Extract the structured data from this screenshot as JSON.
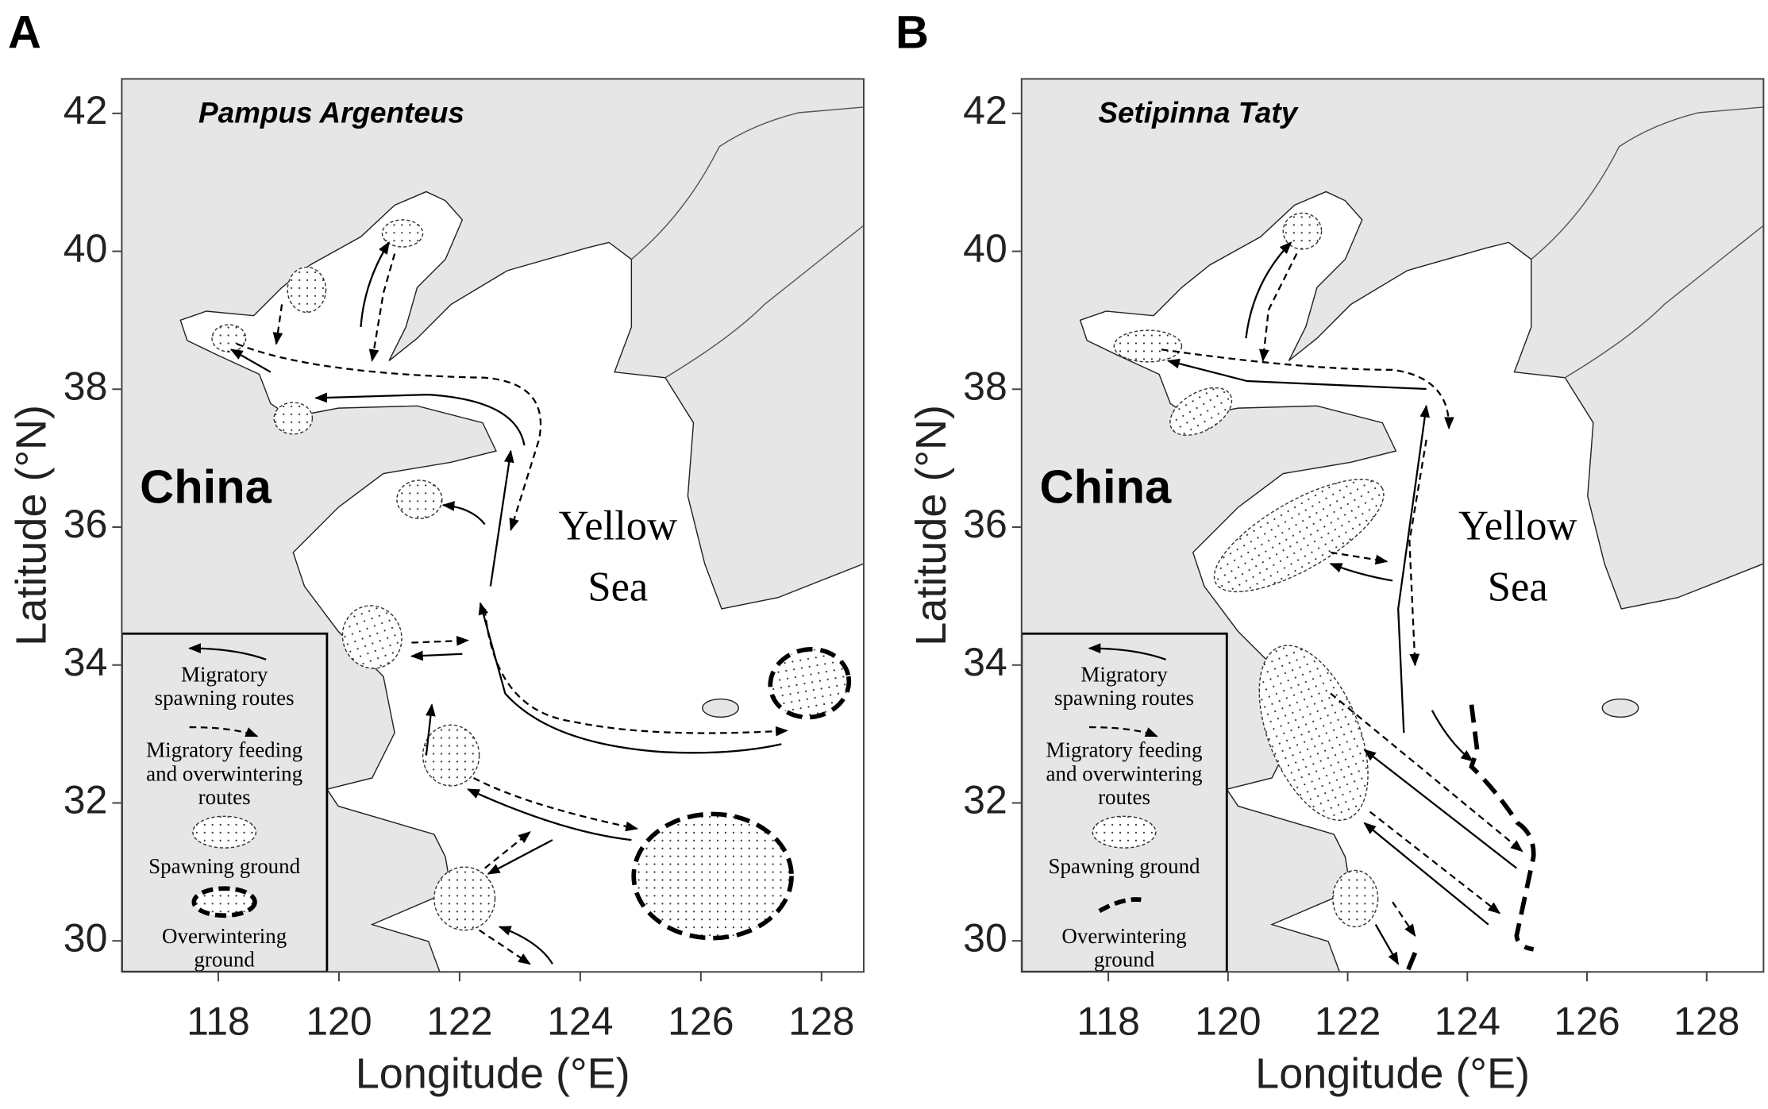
{
  "panels": [
    {
      "label": "A",
      "species": "Pampus Argenteus",
      "land_label": "China",
      "sea_label": [
        "Yellow",
        "Sea"
      ],
      "xlabel": "Longitude (°E)",
      "ylabel": "Latitude (°N)",
      "xlim": [
        116.4,
        128.7
      ],
      "ylim": [
        29.55,
        42.5
      ],
      "xticks": [
        118,
        120,
        122,
        124,
        126,
        128
      ],
      "yticks": [
        30,
        32,
        34,
        36,
        38,
        40,
        42
      ],
      "legend": [
        {
          "symbol": "solid-arrow",
          "label": [
            "Migratory",
            "spawning routes"
          ]
        },
        {
          "symbol": "dashed-arrow",
          "label": [
            "Migratory feeding",
            "and overwintering",
            "routes"
          ]
        },
        {
          "symbol": "dotted-ellipse",
          "label": [
            "Spawning ground"
          ]
        },
        {
          "symbol": "thick-dashed-ellipse",
          "label": [
            "Overwintering",
            "ground"
          ]
        }
      ]
    },
    {
      "label": "B",
      "species": "Setipinna Taty",
      "land_label": "China",
      "sea_label": [
        "Yellow",
        "Sea"
      ],
      "xlabel": "Longitude (°E)",
      "ylabel": "Latitude (°N)",
      "xlim": [
        116.55,
        128.95
      ],
      "ylim": [
        29.55,
        42.5
      ],
      "xticks": [
        118,
        120,
        122,
        124,
        126,
        128
      ],
      "yticks": [
        30,
        32,
        34,
        36,
        38,
        40,
        42
      ],
      "legend": [
        {
          "symbol": "solid-arrow",
          "label": [
            "Migratory",
            "spawning routes"
          ]
        },
        {
          "symbol": "dashed-arrow",
          "label": [
            "Migratory feeding",
            "and overwintering",
            "routes"
          ]
        },
        {
          "symbol": "dotted-ellipse",
          "label": [
            "Spawning ground"
          ]
        },
        {
          "symbol": "thick-dashed-line",
          "label": [
            "Overwintering",
            "ground"
          ]
        }
      ]
    }
  ]
}
